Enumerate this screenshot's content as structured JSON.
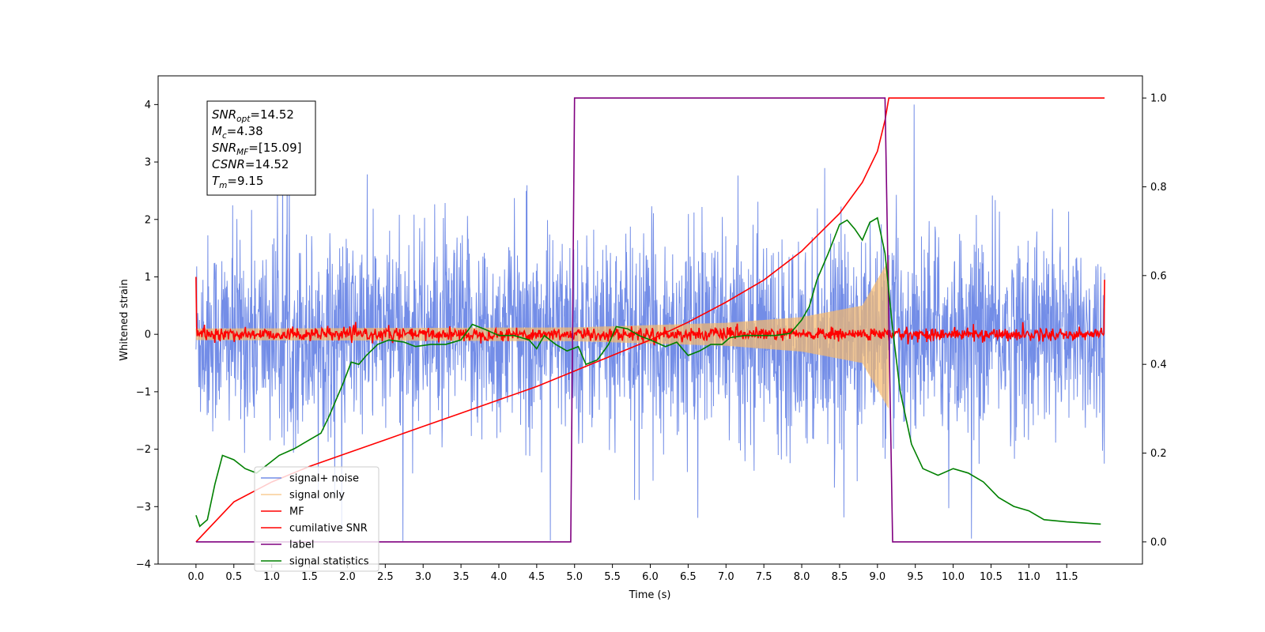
{
  "chart_data": {
    "type": "line",
    "xlabel": "Time (s)",
    "ylabel_left": "Whitened strain",
    "xlim": [
      -0.5,
      12.5
    ],
    "ylim_left": [
      -4,
      4.5
    ],
    "ylim_right": [
      -0.05,
      1.05
    ],
    "x_ticks": [
      "0.0",
      "0.5",
      "1.0",
      "1.5",
      "2.0",
      "2.5",
      "3.0",
      "3.5",
      "4.0",
      "4.5",
      "5.0",
      "5.5",
      "6.0",
      "6.5",
      "7.0",
      "7.5",
      "8.0",
      "8.5",
      "9.0",
      "9.5",
      "10.0",
      "10.5",
      "11.0",
      "11.5"
    ],
    "y_ticks_left": [
      "4",
      "3",
      "2",
      "1",
      "0",
      "−1",
      "−2",
      "−3",
      "−4"
    ],
    "y_ticks_right": [
      "1.0",
      "0.8",
      "0.6",
      "0.4",
      "0.2",
      "0.0"
    ],
    "grid": false,
    "legend_position": "lower-left",
    "info_box": {
      "lines": [
        {
          "main": "SNR",
          "sub": "opt",
          "rest": "=14.52"
        },
        {
          "main": "M",
          "sub": "c",
          "rest": "=4.38"
        },
        {
          "main": "SNR",
          "sub": "MF",
          "rest": "=[15.09]"
        },
        {
          "main": "CSNR",
          "sub": "",
          "rest": "=14.52"
        },
        {
          "main": "T",
          "sub": "m",
          "rest": "=9.15"
        }
      ]
    },
    "series": [
      {
        "name": "signal+ noise",
        "color": "#6b87e6",
        "axis": "left",
        "kind": "noise",
        "x_range": [
          0,
          12
        ],
        "envelope_typical": 1.5,
        "envelope_peak": 4.0
      },
      {
        "name": "signal only",
        "color": "#f7b96b",
        "axis": "left",
        "kind": "chirp",
        "x_range": [
          0,
          9.15
        ],
        "amplitude_points": [
          [
            0,
            0.1
          ],
          [
            5,
            0.12
          ],
          [
            7,
            0.2
          ],
          [
            8,
            0.3
          ],
          [
            8.8,
            0.5
          ],
          [
            9.15,
            1.3
          ]
        ]
      },
      {
        "name": "MF",
        "color": "#ff0000",
        "axis": "left",
        "kind": "mf",
        "x_range": [
          0,
          12
        ],
        "start": 1.0,
        "end": 0.95,
        "noise_amplitude": 0.08
      },
      {
        "name": "cumilative SNR",
        "color": "#ff0000",
        "axis": "right",
        "kind": "line",
        "points": [
          [
            0,
            0
          ],
          [
            0.5,
            0.09
          ],
          [
            1,
            0.135
          ],
          [
            1.5,
            0.17
          ],
          [
            2,
            0.2
          ],
          [
            2.5,
            0.23
          ],
          [
            3,
            0.26
          ],
          [
            3.5,
            0.29
          ],
          [
            4,
            0.32
          ],
          [
            4.5,
            0.35
          ],
          [
            5,
            0.385
          ],
          [
            5.5,
            0.42
          ],
          [
            6,
            0.455
          ],
          [
            6.5,
            0.495
          ],
          [
            7,
            0.54
          ],
          [
            7.5,
            0.59
          ],
          [
            8,
            0.655
          ],
          [
            8.5,
            0.74
          ],
          [
            8.8,
            0.81
          ],
          [
            9,
            0.88
          ],
          [
            9.1,
            0.95
          ],
          [
            9.15,
            1.0
          ],
          [
            12,
            1.0
          ]
        ]
      },
      {
        "name": "label",
        "color": "#800080",
        "axis": "right",
        "kind": "line",
        "points": [
          [
            0,
            0
          ],
          [
            4.95,
            0
          ],
          [
            5.0,
            1.0
          ],
          [
            9.1,
            1.0
          ],
          [
            9.2,
            0
          ],
          [
            11.95,
            0
          ]
        ]
      },
      {
        "name": "signal statistics",
        "color": "#008000",
        "axis": "right",
        "kind": "line",
        "points": [
          [
            0,
            0.06
          ],
          [
            0.05,
            0.035
          ],
          [
            0.15,
            0.05
          ],
          [
            0.25,
            0.13
          ],
          [
            0.35,
            0.195
          ],
          [
            0.5,
            0.185
          ],
          [
            0.65,
            0.165
          ],
          [
            0.8,
            0.155
          ],
          [
            0.95,
            0.175
          ],
          [
            1.1,
            0.195
          ],
          [
            1.3,
            0.21
          ],
          [
            1.5,
            0.23
          ],
          [
            1.65,
            0.245
          ],
          [
            1.75,
            0.28
          ],
          [
            1.85,
            0.32
          ],
          [
            1.95,
            0.36
          ],
          [
            2.05,
            0.405
          ],
          [
            2.15,
            0.4
          ],
          [
            2.25,
            0.42
          ],
          [
            2.4,
            0.445
          ],
          [
            2.55,
            0.455
          ],
          [
            2.75,
            0.45
          ],
          [
            2.9,
            0.44
          ],
          [
            3.1,
            0.445
          ],
          [
            3.3,
            0.445
          ],
          [
            3.5,
            0.455
          ],
          [
            3.65,
            0.49
          ],
          [
            3.8,
            0.48
          ],
          [
            4.0,
            0.465
          ],
          [
            4.2,
            0.465
          ],
          [
            4.4,
            0.455
          ],
          [
            4.5,
            0.435
          ],
          [
            4.6,
            0.465
          ],
          [
            4.75,
            0.445
          ],
          [
            4.9,
            0.43
          ],
          [
            5.05,
            0.44
          ],
          [
            5.15,
            0.4
          ],
          [
            5.3,
            0.41
          ],
          [
            5.45,
            0.445
          ],
          [
            5.55,
            0.485
          ],
          [
            5.7,
            0.48
          ],
          [
            5.85,
            0.465
          ],
          [
            6.0,
            0.455
          ],
          [
            6.2,
            0.44
          ],
          [
            6.35,
            0.45
          ],
          [
            6.5,
            0.42
          ],
          [
            6.65,
            0.43
          ],
          [
            6.8,
            0.445
          ],
          [
            6.95,
            0.445
          ],
          [
            7.05,
            0.46
          ],
          [
            7.25,
            0.465
          ],
          [
            7.45,
            0.465
          ],
          [
            7.65,
            0.465
          ],
          [
            7.85,
            0.47
          ],
          [
            8.0,
            0.5
          ],
          [
            8.1,
            0.53
          ],
          [
            8.2,
            0.59
          ],
          [
            8.35,
            0.65
          ],
          [
            8.5,
            0.715
          ],
          [
            8.6,
            0.725
          ],
          [
            8.7,
            0.705
          ],
          [
            8.8,
            0.68
          ],
          [
            8.9,
            0.72
          ],
          [
            9.0,
            0.73
          ],
          [
            9.1,
            0.65
          ],
          [
            9.2,
            0.48
          ],
          [
            9.3,
            0.34
          ],
          [
            9.45,
            0.22
          ],
          [
            9.6,
            0.165
          ],
          [
            9.8,
            0.15
          ],
          [
            10.0,
            0.165
          ],
          [
            10.2,
            0.155
          ],
          [
            10.4,
            0.135
          ],
          [
            10.6,
            0.1
          ],
          [
            10.8,
            0.08
          ],
          [
            11.0,
            0.07
          ],
          [
            11.2,
            0.05
          ],
          [
            11.5,
            0.045
          ],
          [
            11.95,
            0.04
          ]
        ]
      }
    ]
  }
}
